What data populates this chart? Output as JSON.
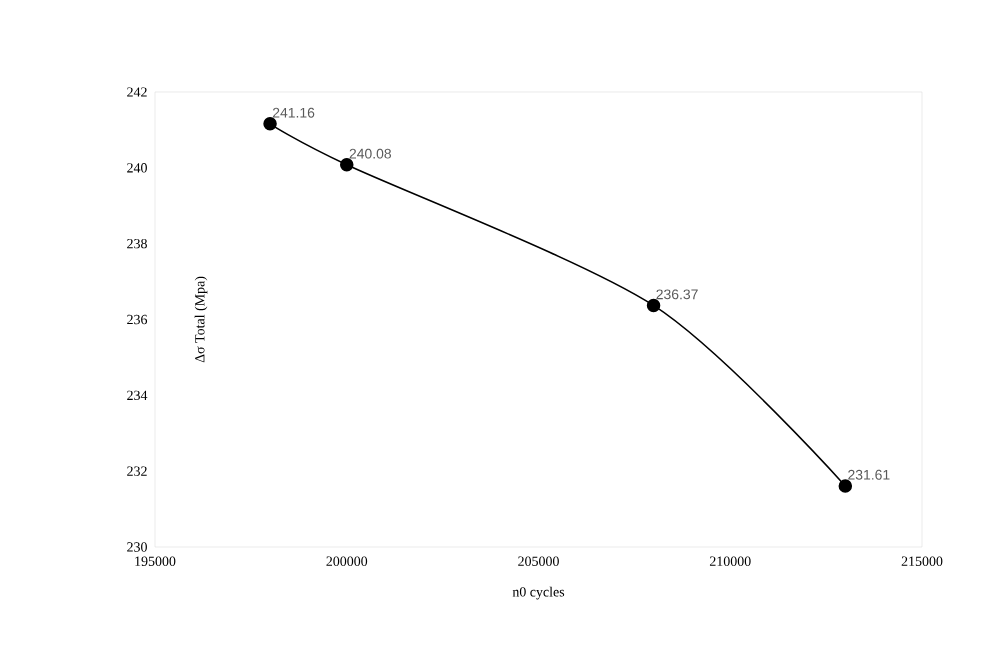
{
  "chart_data": {
    "type": "line",
    "xlabel": "n0 cycles",
    "ylabel": "Δσ Total (Mpa)",
    "x": [
      198000,
      200000,
      208000,
      213000
    ],
    "values": [
      241.16,
      240.08,
      236.37,
      231.61
    ],
    "color": "#000000",
    "marker": "circle",
    "line_style": "solid",
    "data_labels": true,
    "grid": false,
    "xlim": [
      195000,
      215000
    ],
    "xticks": [
      195000,
      200000,
      205000,
      210000,
      215000
    ],
    "ylim": [
      230,
      242
    ],
    "yticks": [
      230,
      232,
      234,
      236,
      238,
      240,
      242
    ]
  }
}
